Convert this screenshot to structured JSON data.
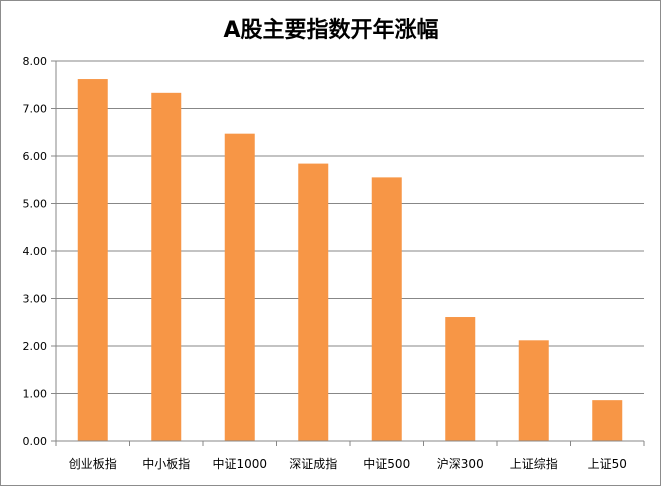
{
  "chart_data": {
    "type": "bar",
    "title": "A股主要指数开年涨幅",
    "categories": [
      "创业板指",
      "中小板指",
      "中证1000",
      "深证成指",
      "中证500",
      "沪深300",
      "上证综指",
      "上证50"
    ],
    "values": [
      7.62,
      7.33,
      6.47,
      5.84,
      5.55,
      2.61,
      2.12,
      0.86
    ],
    "yticks": [
      "0.00",
      "1.00",
      "2.00",
      "3.00",
      "4.00",
      "5.00",
      "6.00",
      "7.00",
      "8.00"
    ],
    "ylim": [
      0,
      8
    ],
    "grid": true,
    "legend": "none",
    "bar_color": "#F79646",
    "grid_color": "#878787"
  }
}
